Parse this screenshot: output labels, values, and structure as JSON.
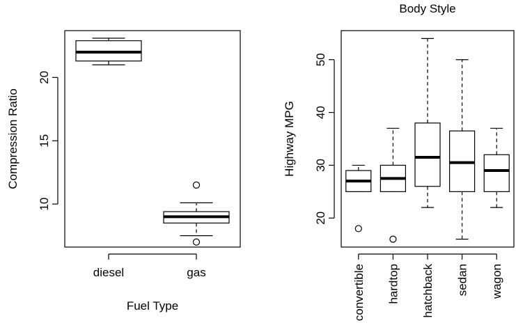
{
  "chart_data": [
    {
      "type": "boxplot",
      "title": "",
      "xlabel": "Fuel Type",
      "ylabel": "Compression Ratio",
      "ylim": [
        6.6,
        23.7
      ],
      "yticks": [
        10,
        15,
        20
      ],
      "grid": false,
      "categories": [
        "diesel",
        "gas"
      ],
      "boxes": [
        {
          "category": "diesel",
          "whisker_low": 21.0,
          "q1": 21.3,
          "median": 22.0,
          "q3": 22.9,
          "whisker_high": 23.1,
          "outliers": []
        },
        {
          "category": "gas",
          "whisker_low": 7.5,
          "q1": 8.5,
          "median": 9.0,
          "q3": 9.4,
          "whisker_high": 10.1,
          "outliers": [
            11.5,
            7.0
          ]
        }
      ]
    },
    {
      "type": "boxplot",
      "title": "Body Style",
      "xlabel": "",
      "ylabel": "Highway MPG",
      "ylim": [
        14.5,
        55.5
      ],
      "yticks": [
        20,
        30,
        40,
        50
      ],
      "grid": false,
      "categories": [
        "convertible",
        "hardtop",
        "hatchback",
        "sedan",
        "wagon"
      ],
      "boxes": [
        {
          "category": "convertible",
          "whisker_low": 25,
          "q1": 25,
          "median": 27,
          "q3": 29,
          "whisker_high": 30,
          "outliers": [
            18
          ]
        },
        {
          "category": "hardtop",
          "whisker_low": 25,
          "q1": 25,
          "median": 27.5,
          "q3": 30,
          "whisker_high": 37,
          "outliers": [
            16
          ]
        },
        {
          "category": "hatchback",
          "whisker_low": 22,
          "q1": 26,
          "median": 31.5,
          "q3": 38,
          "whisker_high": 54,
          "outliers": []
        },
        {
          "category": "sedan",
          "whisker_low": 16,
          "q1": 25,
          "median": 30.5,
          "q3": 36.5,
          "whisker_high": 50,
          "outliers": []
        },
        {
          "category": "wagon",
          "whisker_low": 22,
          "q1": 25,
          "median": 29,
          "q3": 32,
          "whisker_high": 37,
          "outliers": []
        }
      ]
    }
  ]
}
